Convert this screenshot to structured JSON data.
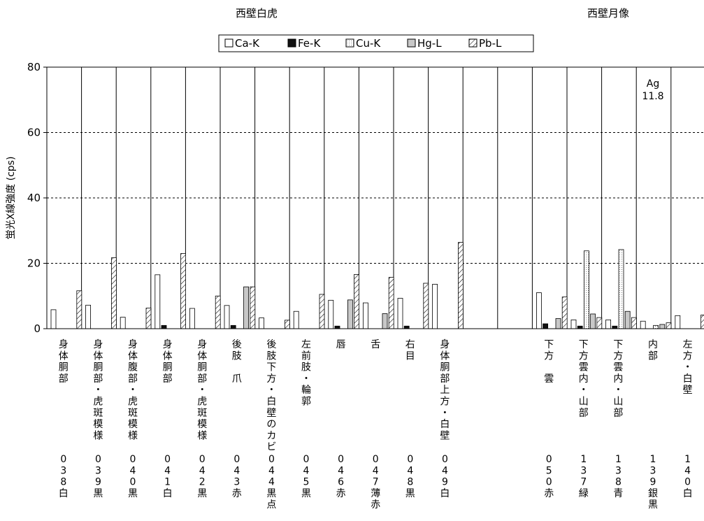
{
  "chart_data": {
    "type": "bar",
    "group_titles": [
      "西壁白虎",
      "西壁月像"
    ],
    "ylabel": "蛍光X線強度 (cps)",
    "ylim": [
      0,
      80
    ],
    "yticks": [
      0,
      20,
      40,
      60,
      80
    ],
    "grid": "horizontal dashed",
    "legend_position": "top-center",
    "series": [
      {
        "name": "Ca-K",
        "pattern": "white",
        "values": [
          5.8,
          7.2,
          3.5,
          16.5,
          6.2,
          7.1,
          3.3,
          5.3,
          8.7,
          7.9,
          9.3,
          13.6,
          null,
          null,
          11.0,
          2.7,
          2.7,
          2.3,
          4.0
        ]
      },
      {
        "name": "Fe-K",
        "pattern": "black",
        "values": [
          null,
          null,
          null,
          1.0,
          null,
          1.0,
          null,
          null,
          0.8,
          null,
          0.8,
          null,
          null,
          null,
          1.5,
          0.8,
          0.8,
          null,
          null
        ]
      },
      {
        "name": "Cu-K",
        "pattern": "dotted",
        "values": [
          null,
          null,
          null,
          null,
          null,
          null,
          null,
          null,
          null,
          null,
          null,
          null,
          null,
          null,
          null,
          23.8,
          24.2,
          1.0,
          null
        ]
      },
      {
        "name": "Hg-L",
        "pattern": "gray",
        "values": [
          null,
          null,
          null,
          null,
          null,
          12.8,
          null,
          null,
          8.8,
          4.6,
          null,
          null,
          null,
          null,
          3.1,
          4.5,
          5.3,
          1.3,
          null
        ]
      },
      {
        "name": "Pb-L",
        "pattern": "hatched",
        "values": [
          11.6,
          21.7,
          6.3,
          23.0,
          10.0,
          12.8,
          2.6,
          10.5,
          16.6,
          15.7,
          13.9,
          26.4,
          null,
          null,
          9.7,
          3.4,
          3.4,
          1.8,
          4.2
        ]
      }
    ],
    "annotations": [
      {
        "slot": 17,
        "lines": [
          "Ag",
          "11.8"
        ]
      }
    ],
    "slots": [
      {
        "label": "身体胴部",
        "code": "038白"
      },
      {
        "label": "身体胴部・虎斑模様",
        "code": "039黒"
      },
      {
        "label": "身体腹部・虎斑模様",
        "code": "040黒"
      },
      {
        "label": "身体胴部",
        "code": "041白"
      },
      {
        "label": "身体胴部・虎斑模様",
        "code": "042黒"
      },
      {
        "label": "後肢　爪",
        "code": "043赤"
      },
      {
        "label": "後肢下方・白壁のカビ",
        "code": "044黒点"
      },
      {
        "label": "左前肢・輪郭",
        "code": "045黒"
      },
      {
        "label": "唇",
        "code": "046赤"
      },
      {
        "label": "舌",
        "code": "047薄赤"
      },
      {
        "label": "右目",
        "code": "048黒"
      },
      {
        "label": "身体胴部上方・白壁",
        "code": "049白"
      },
      {
        "label": "",
        "code": ""
      },
      {
        "label": "",
        "code": ""
      },
      {
        "label": "下方　雲",
        "code": "050赤"
      },
      {
        "label": "下方雲内・山部",
        "code": "137緑"
      },
      {
        "label": "下方雲内・山部",
        "code": "138青"
      },
      {
        "label": "内部",
        "code": "139銀黒"
      },
      {
        "label": "左方・白壁",
        "code": "140白"
      }
    ]
  }
}
